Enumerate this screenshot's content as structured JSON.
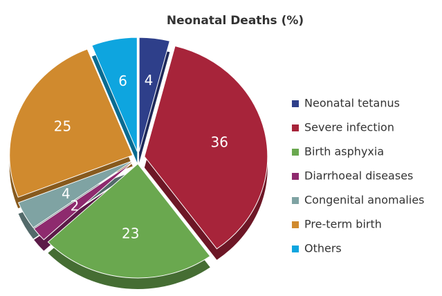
{
  "chart_data": {
    "type": "pie",
    "title": "Neonatal Deaths (%)",
    "categories": [
      "Neonatal tetanus",
      "Severe infection",
      "Birth asphyxia",
      "Diarrhoeal diseases",
      "Congenital anomalies",
      "Pre-term birth",
      "Others"
    ],
    "values": [
      4,
      36,
      23,
      2,
      4,
      25,
      6
    ],
    "colors": [
      "#2e3f8a",
      "#a7243a",
      "#6aa84f",
      "#8e2a6e",
      "#7fa3a3",
      "#d08a2e",
      "#0ea5df"
    ],
    "legend": "right"
  }
}
